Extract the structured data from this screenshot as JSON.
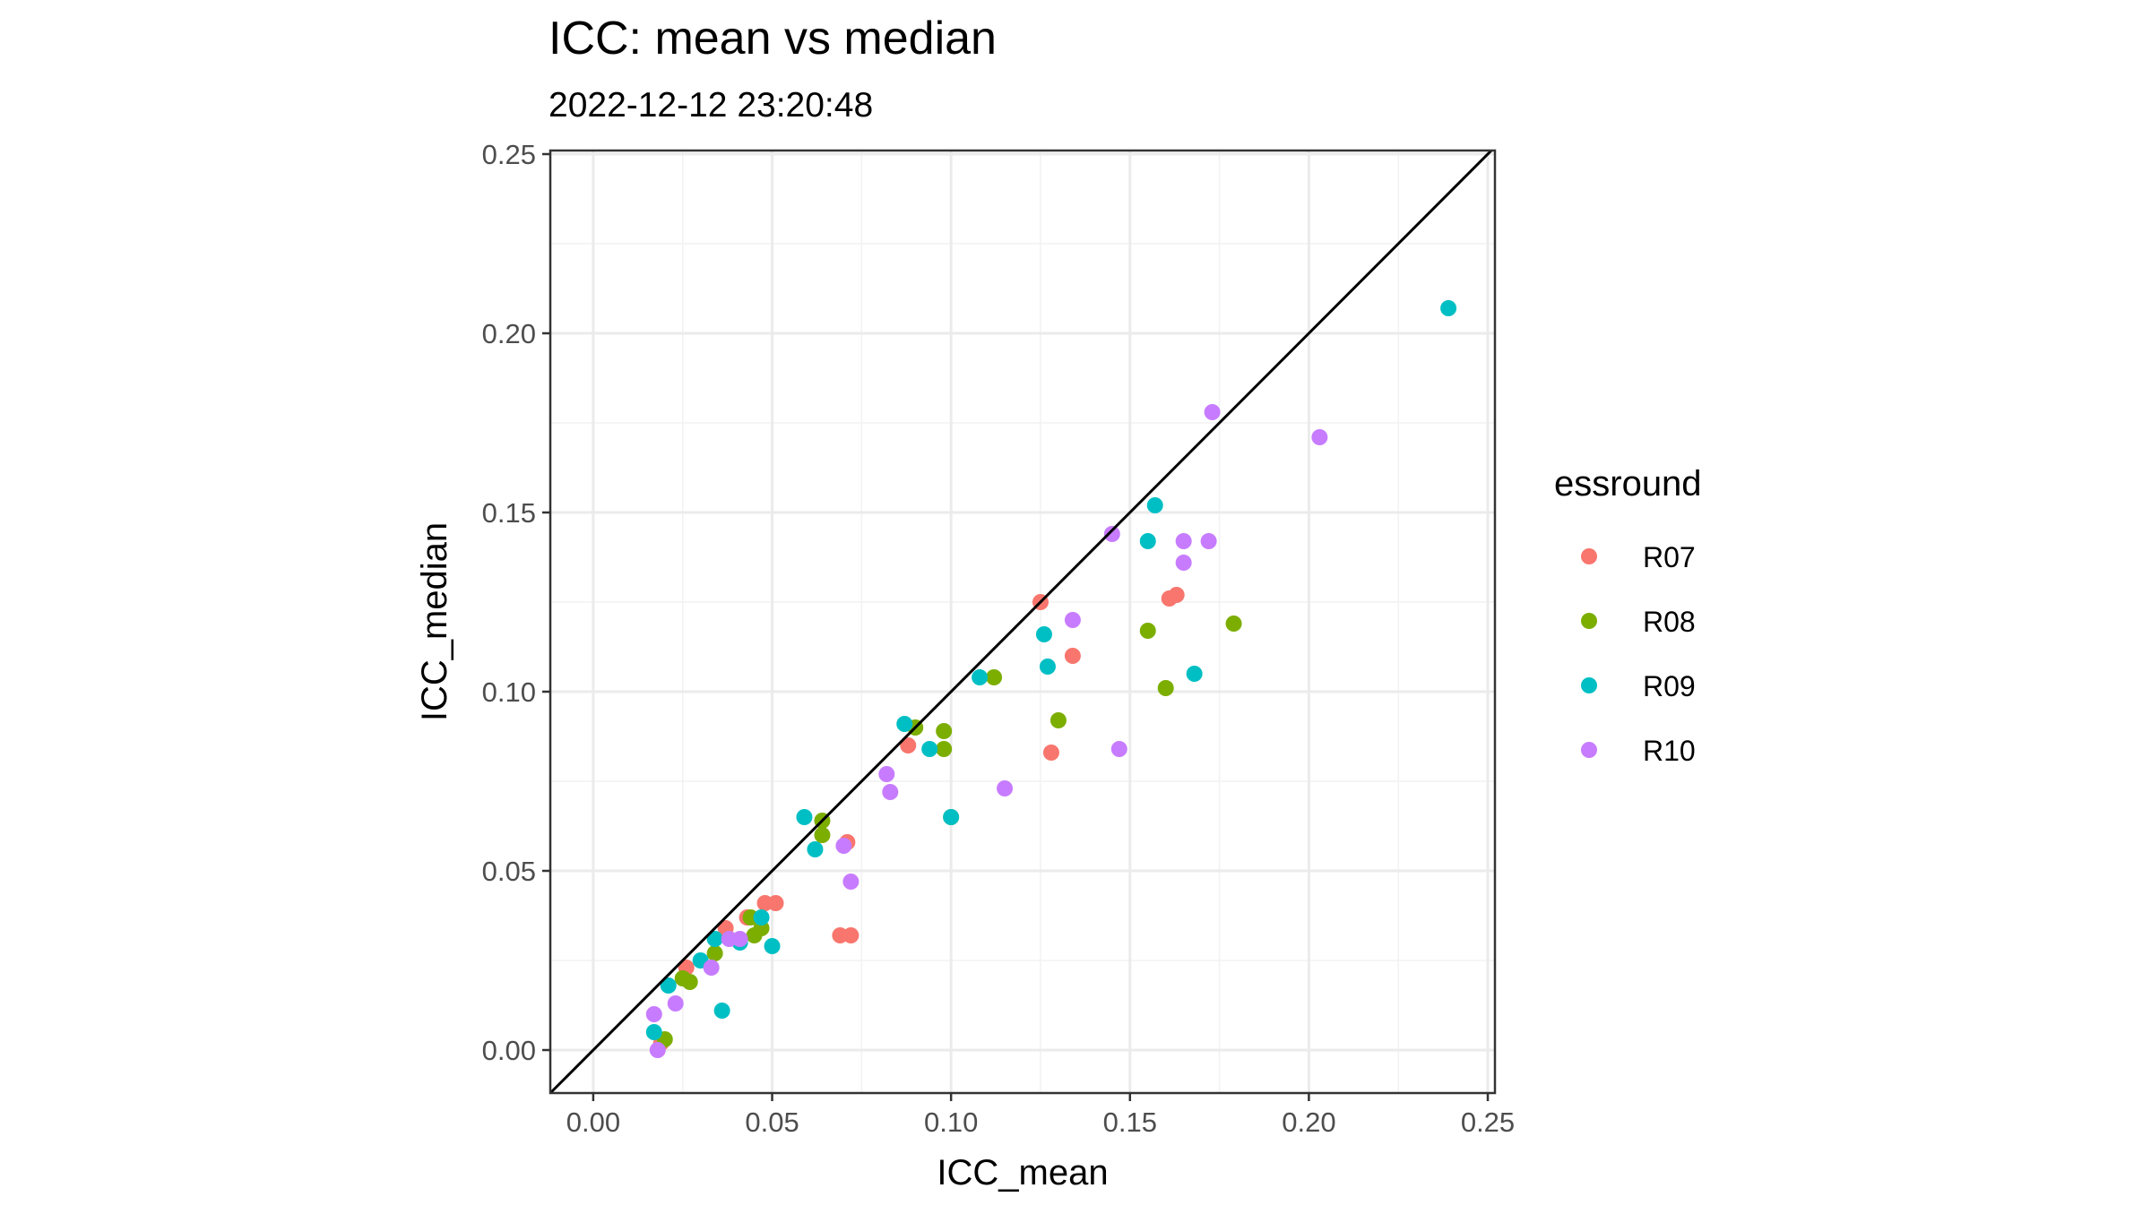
{
  "chart_data": {
    "type": "scatter",
    "title": "ICC: mean vs median",
    "subtitle": "2022-12-12 23:20:48",
    "xlabel": "ICC_mean",
    "ylabel": "ICC_median",
    "xlim": [
      -0.012,
      0.252
    ],
    "ylim": [
      -0.012,
      0.251
    ],
    "x_ticks": [
      0.0,
      0.05,
      0.1,
      0.15,
      0.2,
      0.25
    ],
    "x_tick_labels": [
      "0.00",
      "0.05",
      "0.10",
      "0.15",
      "0.20",
      "0.25"
    ],
    "y_ticks": [
      0.0,
      0.05,
      0.1,
      0.15,
      0.2,
      0.25
    ],
    "y_tick_labels": [
      "0.00",
      "0.05",
      "0.10",
      "0.15",
      "0.20",
      "0.25"
    ],
    "grid": true,
    "reference_line": "y = x",
    "legend": {
      "title": "essround",
      "position": "right"
    },
    "series": [
      {
        "name": "R07",
        "color": "#F8766D",
        "points": [
          [
            0.019,
            0.002
          ],
          [
            0.026,
            0.023
          ],
          [
            0.037,
            0.034
          ],
          [
            0.043,
            0.037
          ],
          [
            0.048,
            0.041
          ],
          [
            0.051,
            0.041
          ],
          [
            0.069,
            0.032
          ],
          [
            0.072,
            0.032
          ],
          [
            0.071,
            0.058
          ],
          [
            0.088,
            0.085
          ],
          [
            0.125,
            0.125
          ],
          [
            0.128,
            0.083
          ],
          [
            0.134,
            0.11
          ],
          [
            0.161,
            0.126
          ],
          [
            0.163,
            0.127
          ]
        ]
      },
      {
        "name": "R08",
        "color": "#7CAE00",
        "points": [
          [
            0.02,
            0.003
          ],
          [
            0.025,
            0.02
          ],
          [
            0.027,
            0.019
          ],
          [
            0.034,
            0.027
          ],
          [
            0.044,
            0.037
          ],
          [
            0.045,
            0.032
          ],
          [
            0.047,
            0.034
          ],
          [
            0.064,
            0.064
          ],
          [
            0.064,
            0.06
          ],
          [
            0.09,
            0.09
          ],
          [
            0.098,
            0.084
          ],
          [
            0.098,
            0.089
          ],
          [
            0.1,
            0.065
          ],
          [
            0.112,
            0.104
          ],
          [
            0.13,
            0.092
          ],
          [
            0.155,
            0.117
          ],
          [
            0.16,
            0.101
          ],
          [
            0.179,
            0.119
          ]
        ]
      },
      {
        "name": "R09",
        "color": "#00BFC4",
        "points": [
          [
            0.017,
            0.005
          ],
          [
            0.021,
            0.018
          ],
          [
            0.03,
            0.025
          ],
          [
            0.034,
            0.031
          ],
          [
            0.036,
            0.011
          ],
          [
            0.041,
            0.03
          ],
          [
            0.047,
            0.037
          ],
          [
            0.05,
            0.029
          ],
          [
            0.059,
            0.065
          ],
          [
            0.062,
            0.056
          ],
          [
            0.087,
            0.091
          ],
          [
            0.094,
            0.084
          ],
          [
            0.1,
            0.065
          ],
          [
            0.108,
            0.104
          ],
          [
            0.126,
            0.116
          ],
          [
            0.127,
            0.107
          ],
          [
            0.155,
            0.142
          ],
          [
            0.157,
            0.152
          ],
          [
            0.168,
            0.105
          ],
          [
            0.239,
            0.207
          ]
        ]
      },
      {
        "name": "R10",
        "color": "#C77CFF",
        "points": [
          [
            0.017,
            0.01
          ],
          [
            0.018,
            0.0
          ],
          [
            0.023,
            0.013
          ],
          [
            0.033,
            0.023
          ],
          [
            0.038,
            0.031
          ],
          [
            0.041,
            0.031
          ],
          [
            0.07,
            0.057
          ],
          [
            0.072,
            0.047
          ],
          [
            0.082,
            0.077
          ],
          [
            0.083,
            0.072
          ],
          [
            0.115,
            0.073
          ],
          [
            0.134,
            0.12
          ],
          [
            0.145,
            0.144
          ],
          [
            0.147,
            0.084
          ],
          [
            0.165,
            0.142
          ],
          [
            0.165,
            0.136
          ],
          [
            0.172,
            0.142
          ],
          [
            0.173,
            0.178
          ],
          [
            0.203,
            0.171
          ]
        ]
      }
    ]
  }
}
